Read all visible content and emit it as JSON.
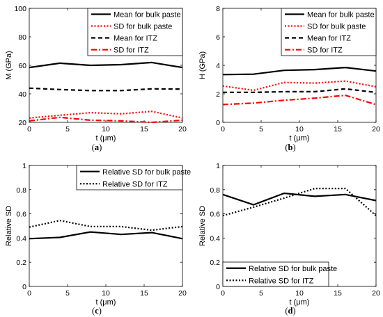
{
  "chart_data": [
    {
      "type": "line",
      "caption": "a",
      "xlabel": "t (μm)",
      "ylabel": "M (GPa)",
      "xlim": [
        0,
        20
      ],
      "ylim": [
        20,
        100
      ],
      "xticks": [
        0,
        5,
        10,
        15,
        20
      ],
      "yticks": [
        20,
        40,
        60,
        80,
        100
      ],
      "legend_position": "top-right",
      "series": [
        {
          "name": "Mean for bulk paste",
          "color": "#000000",
          "dash": "solid",
          "x": [
            0,
            4,
            8,
            12,
            16,
            20
          ],
          "values": [
            58.5,
            61.5,
            60.0,
            60.5,
            62.0,
            58.5
          ]
        },
        {
          "name": "SD for bulk paste",
          "color": "#ff0000",
          "dash": "dotted",
          "x": [
            0,
            4,
            8,
            12,
            16,
            20
          ],
          "values": [
            23.0,
            25.0,
            26.8,
            26.0,
            27.7,
            23.0
          ]
        },
        {
          "name": "Mean for ITZ",
          "color": "#000000",
          "dash": "dashed",
          "x": [
            0,
            4,
            8,
            12,
            16,
            20
          ],
          "values": [
            44.0,
            43.0,
            42.3,
            42.3,
            43.5,
            43.3
          ]
        },
        {
          "name": "SD for ITZ",
          "color": "#ff0000",
          "dash": "dashdot",
          "x": [
            0,
            4,
            8,
            12,
            16,
            20
          ],
          "values": [
            21.0,
            23.5,
            21.5,
            21.0,
            20.0,
            21.5
          ]
        }
      ]
    },
    {
      "type": "line",
      "caption": "b",
      "xlabel": "t (μm)",
      "ylabel": "H (GPa)",
      "xlim": [
        0,
        20
      ],
      "ylim": [
        0,
        8
      ],
      "xticks": [
        0,
        5,
        10,
        15,
        20
      ],
      "yticks": [
        0,
        2,
        4,
        6,
        8
      ],
      "legend_position": "top-right",
      "series": [
        {
          "name": "Mean for bulk paste",
          "color": "#000000",
          "dash": "solid",
          "x": [
            0,
            4,
            8,
            12,
            16,
            20
          ],
          "values": [
            3.35,
            3.38,
            3.65,
            3.7,
            3.85,
            3.6
          ]
        },
        {
          "name": "SD for bulk paste",
          "color": "#ff0000",
          "dash": "dotted",
          "x": [
            0,
            4,
            8,
            12,
            16,
            20
          ],
          "values": [
            2.55,
            2.25,
            2.8,
            2.75,
            2.9,
            2.5
          ]
        },
        {
          "name": "Mean for ITZ",
          "color": "#000000",
          "dash": "dashed",
          "x": [
            0,
            4,
            8,
            12,
            16,
            20
          ],
          "values": [
            2.1,
            2.1,
            2.15,
            2.15,
            2.35,
            2.1
          ]
        },
        {
          "name": "SD for ITZ",
          "color": "#ff0000",
          "dash": "dashdot",
          "x": [
            0,
            4,
            8,
            12,
            16,
            20
          ],
          "values": [
            1.25,
            1.35,
            1.55,
            1.7,
            1.9,
            1.25
          ]
        }
      ]
    },
    {
      "type": "line",
      "caption": "c",
      "xlabel": "t (μm)",
      "ylabel": "Relative  SD",
      "xlim": [
        0,
        20
      ],
      "ylim": [
        0,
        1
      ],
      "xticks": [
        0,
        5,
        10,
        15,
        20
      ],
      "yticks": [
        0,
        0.2,
        0.4,
        0.6,
        0.8,
        1
      ],
      "legend_position": "top-right",
      "series": [
        {
          "name": "Relative SD for bulk paste",
          "color": "#000000",
          "dash": "solid",
          "x": [
            0,
            4,
            8,
            12,
            16,
            20
          ],
          "values": [
            0.395,
            0.405,
            0.45,
            0.43,
            0.445,
            0.395
          ]
        },
        {
          "name": "Relative SD for ITZ",
          "color": "#000000",
          "dash": "dotted",
          "x": [
            0,
            4,
            8,
            12,
            16,
            20
          ],
          "values": [
            0.49,
            0.545,
            0.495,
            0.495,
            0.465,
            0.495
          ]
        }
      ]
    },
    {
      "type": "line",
      "caption": "d",
      "xlabel": "t (μm)",
      "ylabel": "Relative  SD",
      "xlim": [
        0,
        20
      ],
      "ylim": [
        0,
        1
      ],
      "xticks": [
        0,
        5,
        10,
        15,
        20
      ],
      "yticks": [
        0,
        0.2,
        0.4,
        0.6,
        0.8,
        1
      ],
      "legend_position": "bottom-left",
      "series": [
        {
          "name": "Relative SD for bulk paste",
          "color": "#000000",
          "dash": "solid",
          "x": [
            0,
            4,
            8,
            12,
            16,
            20
          ],
          "values": [
            0.76,
            0.675,
            0.77,
            0.745,
            0.76,
            0.71
          ]
        },
        {
          "name": "Relative SD for ITZ",
          "color": "#000000",
          "dash": "dotted",
          "x": [
            0,
            4,
            8,
            12,
            16,
            20
          ],
          "values": [
            0.585,
            0.655,
            0.73,
            0.81,
            0.81,
            0.585
          ]
        }
      ]
    }
  ]
}
